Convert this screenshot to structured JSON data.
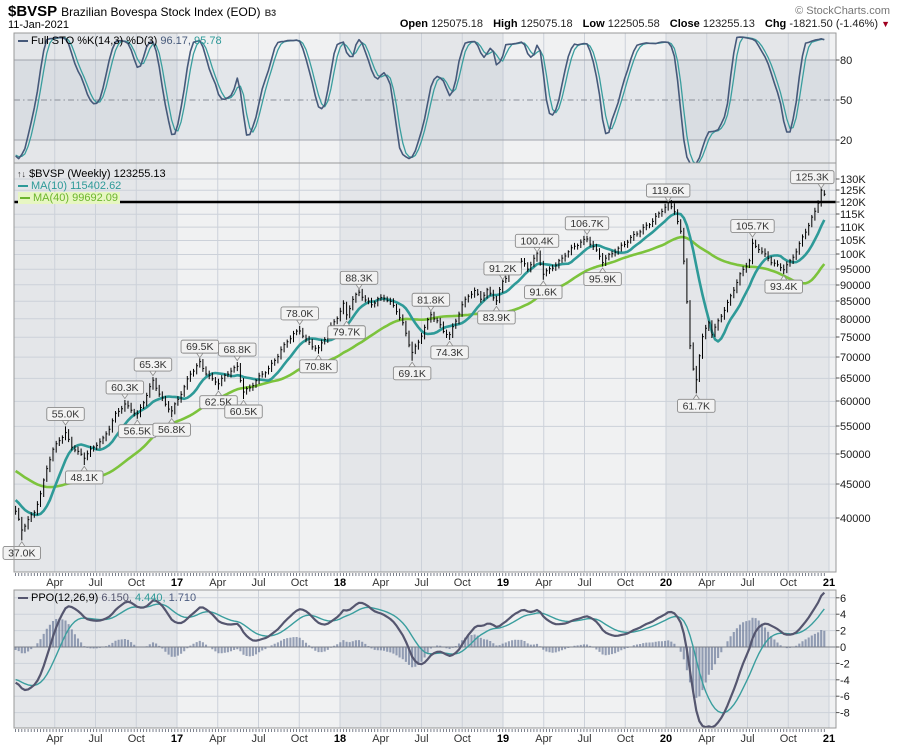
{
  "header": {
    "symbol": "$BVSP",
    "title": "Brazilian Bovespa Stock Index (EOD)",
    "exchange": "B3",
    "date": "11-Jan-2021",
    "copyright": "© StockCharts.com",
    "quote": {
      "open_label": "Open",
      "open": "125075.18",
      "high_label": "High",
      "high": "125075.18",
      "low_label": "Low",
      "low": "122505.58",
      "close_label": "Close",
      "close": "123255.13",
      "chg_label": "Chg",
      "chg": "-1821.50 (-1.46%)"
    }
  },
  "icons": {
    "chart_type": "↑↓",
    "down_triangle": "▼"
  },
  "legends": {
    "sto": {
      "name": "Full STO %K(14,3) %D(3)",
      "k": "96.17,",
      "d": "95.78"
    },
    "price": {
      "symbol": "$BVSP (Weekly)",
      "close": "123255.13",
      "ma10": "MA(10) 115402.62",
      "ma40": "MA(40) 99692.09"
    },
    "ppo": {
      "name": "PPO(12,26,9)",
      "v1": "6.150,",
      "v2": "4.440,",
      "v3": "1.710"
    }
  },
  "chart_data": {
    "type": "ohlc-multi-panel",
    "scale": "log",
    "x_axis": {
      "start": "Jan-2016",
      "end": "Jan-2021",
      "tick_labels": [
        "Apr",
        "Jul",
        "Oct",
        "17",
        "Apr",
        "Jul",
        "Oct",
        "18",
        "Apr",
        "Jul",
        "Oct",
        "19",
        "Apr",
        "Jul",
        "Oct",
        "20",
        "Apr",
        "Jul",
        "Oct",
        "21"
      ]
    },
    "sto_panel": {
      "y_ticks": [
        80,
        50,
        20
      ],
      "k": 96.17,
      "d": 95.78
    },
    "ppo_panel": {
      "y_ticks": [
        6,
        4,
        2,
        0,
        -2,
        -4,
        -6,
        -8
      ],
      "ppo": 6.15,
      "signal": 4.44,
      "hist": 1.71
    },
    "price_panel": {
      "hline": 120000,
      "y_ticks": [
        [
          130000,
          "130K"
        ],
        [
          125000,
          "125K"
        ],
        [
          120000,
          "120K"
        ],
        [
          115000,
          "115K"
        ],
        [
          110000,
          "110K"
        ],
        [
          105000,
          "105K"
        ],
        [
          100000,
          "100K"
        ],
        [
          95000,
          "95000"
        ],
        [
          90000,
          "90000"
        ],
        [
          85000,
          "85000"
        ],
        [
          80000,
          "80000"
        ],
        [
          75000,
          "75000"
        ],
        [
          70000,
          "70000"
        ],
        [
          65000,
          "65000"
        ],
        [
          60000,
          "60000"
        ],
        [
          55000,
          "55000"
        ],
        [
          50000,
          "50000"
        ],
        [
          45000,
          "45000"
        ],
        [
          40000,
          "40000"
        ]
      ],
      "anchors": [
        [
          -40,
          53500
        ],
        [
          -30,
          50500
        ],
        [
          -20,
          46500
        ],
        [
          -12,
          45500
        ],
        [
          -6,
          43000
        ],
        [
          -2,
          42000
        ],
        [
          0,
          40800
        ],
        [
          2,
          38300
        ],
        [
          4,
          39800
        ],
        [
          6,
          41000
        ],
        [
          8,
          43500
        ],
        [
          10,
          47500
        ],
        [
          12,
          50500
        ],
        [
          14,
          52500
        ],
        [
          16,
          53800
        ],
        [
          18,
          51500
        ],
        [
          20,
          50200
        ],
        [
          22,
          49300
        ],
        [
          24,
          50500
        ],
        [
          26,
          51800
        ],
        [
          28,
          52800
        ],
        [
          30,
          54800
        ],
        [
          32,
          57200
        ],
        [
          35,
          59200
        ],
        [
          37,
          58400
        ],
        [
          39,
          57500
        ],
        [
          41,
          60000
        ],
        [
          43,
          62800
        ],
        [
          44,
          64200
        ],
        [
          46,
          61500
        ],
        [
          48,
          59400
        ],
        [
          50,
          58300
        ],
        [
          52,
          60500
        ],
        [
          54,
          63000
        ],
        [
          56,
          65800
        ],
        [
          58,
          67800
        ],
        [
          59,
          68700
        ],
        [
          61,
          66500
        ],
        [
          63,
          64800
        ],
        [
          65,
          63900
        ],
        [
          67,
          65300
        ],
        [
          69,
          66800
        ],
        [
          71,
          67800
        ],
        [
          73,
          62300
        ],
        [
          75,
          62800
        ],
        [
          77,
          64300
        ],
        [
          79,
          65800
        ],
        [
          81,
          67300
        ],
        [
          83,
          69500
        ],
        [
          85,
          71800
        ],
        [
          87,
          73800
        ],
        [
          89,
          75500
        ],
        [
          91,
          76800
        ],
        [
          93,
          74500
        ],
        [
          95,
          73000
        ],
        [
          97,
          72000
        ],
        [
          99,
          74500
        ],
        [
          101,
          77500
        ],
        [
          103,
          80500
        ],
        [
          105,
          84300
        ],
        [
          106,
          81300
        ],
        [
          108,
          85500
        ],
        [
          110,
          87500
        ],
        [
          112,
          85000
        ],
        [
          114,
          84200
        ],
        [
          116,
          85800
        ],
        [
          118,
          86300
        ],
        [
          120,
          84500
        ],
        [
          122,
          82000
        ],
        [
          124,
          78500
        ],
        [
          126,
          73500
        ],
        [
          127,
          71500
        ],
        [
          129,
          73800
        ],
        [
          131,
          77500
        ],
        [
          133,
          80800
        ],
        [
          135,
          79300
        ],
        [
          137,
          76800
        ],
        [
          139,
          75800
        ],
        [
          141,
          79500
        ],
        [
          143,
          83500
        ],
        [
          145,
          86500
        ],
        [
          147,
          88000
        ],
        [
          149,
          86200
        ],
        [
          151,
          88300
        ],
        [
          153,
          86200
        ],
        [
          154,
          85000
        ],
        [
          156,
          90800
        ],
        [
          158,
          93800
        ],
        [
          160,
          96300
        ],
        [
          162,
          97800
        ],
        [
          164,
          95000
        ],
        [
          166,
          98200
        ],
        [
          167,
          99800
        ],
        [
          169,
          93800
        ],
        [
          171,
          95200
        ],
        [
          173,
          96800
        ],
        [
          175,
          98300
        ],
        [
          177,
          100800
        ],
        [
          179,
          102600
        ],
        [
          181,
          104800
        ],
        [
          183,
          105800
        ],
        [
          185,
          102800
        ],
        [
          188,
          97300
        ],
        [
          190,
          99500
        ],
        [
          192,
          101500
        ],
        [
          194,
          103200
        ],
        [
          196,
          104800
        ],
        [
          198,
          106500
        ],
        [
          200,
          108200
        ],
        [
          202,
          110500
        ],
        [
          204,
          112800
        ],
        [
          206,
          115500
        ],
        [
          208,
          117800
        ],
        [
          209,
          118900
        ],
        [
          211,
          116200
        ],
        [
          213,
          108000
        ],
        [
          214,
          98000
        ],
        [
          215,
          85500
        ],
        [
          216,
          73000
        ],
        [
          217,
          67000
        ],
        [
          218,
          64800
        ],
        [
          219,
          70500
        ],
        [
          220,
          74800
        ],
        [
          221,
          76800
        ],
        [
          222,
          78800
        ],
        [
          223,
          75800
        ],
        [
          224,
          77500
        ],
        [
          226,
          81200
        ],
        [
          228,
          84500
        ],
        [
          230,
          88500
        ],
        [
          232,
          92800
        ],
        [
          234,
          96300
        ],
        [
          235,
          98000
        ],
        [
          236,
          103800
        ],
        [
          238,
          102500
        ],
        [
          240,
          99800
        ],
        [
          242,
          97300
        ],
        [
          244,
          95800
        ],
        [
          246,
          95300
        ],
        [
          248,
          97800
        ],
        [
          250,
          101500
        ],
        [
          252,
          105800
        ],
        [
          254,
          110500
        ],
        [
          256,
          115800
        ],
        [
          257,
          119500
        ],
        [
          258,
          125077
        ],
        [
          259,
          123255
        ]
      ],
      "last_bar": {
        "open": 125075.18,
        "high": 125075.18,
        "low": 122505.58,
        "close": 123255.13
      },
      "swing_labels": [
        {
          "week": 2,
          "price": 37000,
          "text": "37.0K",
          "side": "b"
        },
        {
          "week": 16,
          "price": 55000,
          "text": "55.0K",
          "side": "a"
        },
        {
          "week": 22,
          "price": 48100,
          "text": "48.1K",
          "side": "b"
        },
        {
          "week": 35,
          "price": 60300,
          "text": "60.3K",
          "side": "a"
        },
        {
          "week": 39,
          "price": 56500,
          "text": "56.5K",
          "side": "b"
        },
        {
          "week": 44,
          "price": 65300,
          "text": "65.3K",
          "side": "a"
        },
        {
          "week": 50,
          "price": 56800,
          "text": "56.8K",
          "side": "b"
        },
        {
          "week": 59,
          "price": 69500,
          "text": "69.5K",
          "side": "a"
        },
        {
          "week": 65,
          "price": 62500,
          "text": "62.5K",
          "side": "b"
        },
        {
          "week": 71,
          "price": 68800,
          "text": "68.8K",
          "side": "a"
        },
        {
          "week": 73,
          "price": 60500,
          "text": "60.5K",
          "side": "b"
        },
        {
          "week": 91,
          "price": 78000,
          "text": "78.0K",
          "side": "a"
        },
        {
          "week": 97,
          "price": 70800,
          "text": "70.8K",
          "side": "b"
        },
        {
          "week": 106,
          "price": 79700,
          "text": "79.7K",
          "side": "b"
        },
        {
          "week": 110,
          "price": 88300,
          "text": "88.3K",
          "side": "a"
        },
        {
          "week": 127,
          "price": 69100,
          "text": "69.1K",
          "side": "b"
        },
        {
          "week": 133,
          "price": 81800,
          "text": "81.8K",
          "side": "a"
        },
        {
          "week": 139,
          "price": 74300,
          "text": "74.3K",
          "side": "b"
        },
        {
          "week": 154,
          "price": 83900,
          "text": "83.9K",
          "side": "b"
        },
        {
          "week": 156,
          "price": 91200,
          "text": "91.2K",
          "side": "a"
        },
        {
          "week": 167,
          "price": 100400,
          "text": "100.4K",
          "side": "a"
        },
        {
          "week": 169,
          "price": 91600,
          "text": "91.6K",
          "side": "b"
        },
        {
          "week": 183,
          "price": 106700,
          "text": "106.7K",
          "side": "a"
        },
        {
          "week": 188,
          "price": 95900,
          "text": "95.9K",
          "side": "b"
        },
        {
          "week": 209,
          "price": 119600,
          "text": "119.6K",
          "side": "a"
        },
        {
          "week": 218,
          "price": 61700,
          "text": "61.7K",
          "side": "b"
        },
        {
          "week": 236,
          "price": 105700,
          "text": "105.7K",
          "side": "a"
        },
        {
          "week": 246,
          "price": 93400,
          "text": "93.4K",
          "side": "b"
        },
        {
          "week": 258,
          "price": 125300,
          "text": "125.3K",
          "side": "a"
        }
      ]
    },
    "colors": {
      "k_line": "#46597a",
      "d_line": "#3a9e9e",
      "ma10": "#2e9a98",
      "ma40": "#7cc33c",
      "ppo_line": "#55566f",
      "signal_line": "#3a9e9e",
      "hist": "#5a6a8e",
      "bars": "#000000",
      "hline": "#000000",
      "grid": "#ccd1d9",
      "frame": "#999999",
      "band_dark": "#e4e6e9",
      "band_light": "#f0f1f2",
      "axis_text": "#1a1a1a",
      "callout_bg": "#f2f2f2",
      "callout_border": "#8a8a8a"
    }
  }
}
